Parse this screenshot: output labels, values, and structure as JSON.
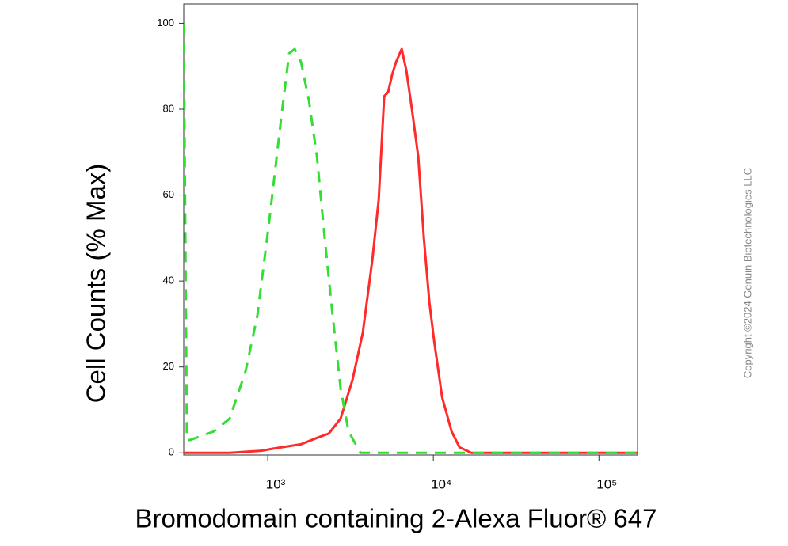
{
  "chart_data": {
    "type": "line",
    "x_label": "Bromodomain containing 2-Alexa Fluor® 647",
    "y_label": "Cell Counts (% Max)",
    "copyright": "Copyright ©2024 Genuin Biotechnologies LLC",
    "x_log": true,
    "xlim": [
      311,
      171000
    ],
    "ylim": [
      -0.5,
      104.5
    ],
    "xticks": [
      {
        "value": 1000,
        "label": "10³"
      },
      {
        "value": 10000,
        "label": "10⁴"
      },
      {
        "value": 100000,
        "label": "10⁵"
      }
    ],
    "yticks": [
      0,
      20,
      40,
      60,
      80,
      100
    ],
    "series": [
      {
        "color": "#ff2a2a",
        "dash": false,
        "x": [
          311,
          589,
          915,
          1080,
          1588,
          1982,
          2335,
          2754,
          3251,
          3750,
          4285,
          4677,
          5047,
          5333,
          5636,
          5957,
          6437,
          6873,
          7426,
          8110,
          8766,
          9466,
          10110,
          11290,
          12890,
          14390,
          16980,
          27860,
          171000
        ],
        "values": [
          0,
          0,
          0.5,
          1,
          2,
          3.5,
          4.5,
          8,
          17,
          28,
          45,
          59,
          83,
          84,
          88,
          91,
          94,
          89,
          80,
          69,
          50,
          35,
          26,
          13,
          5,
          1.3,
          0,
          0,
          0
        ]
      },
      {
        "color": "#33dd33",
        "dash": true,
        "x": [
          311,
          325,
          340,
          473,
          589,
          735,
          866,
          1022,
          1206,
          1346,
          1455,
          1588,
          1774,
          1982,
          2209,
          2466,
          2754,
          3076,
          3631,
          171000
        ],
        "values": [
          100,
          3,
          3,
          5,
          8,
          19,
          32,
          54,
          78,
          93,
          94,
          91,
          82,
          69,
          50,
          32,
          15,
          5,
          0,
          0
        ]
      }
    ]
  }
}
